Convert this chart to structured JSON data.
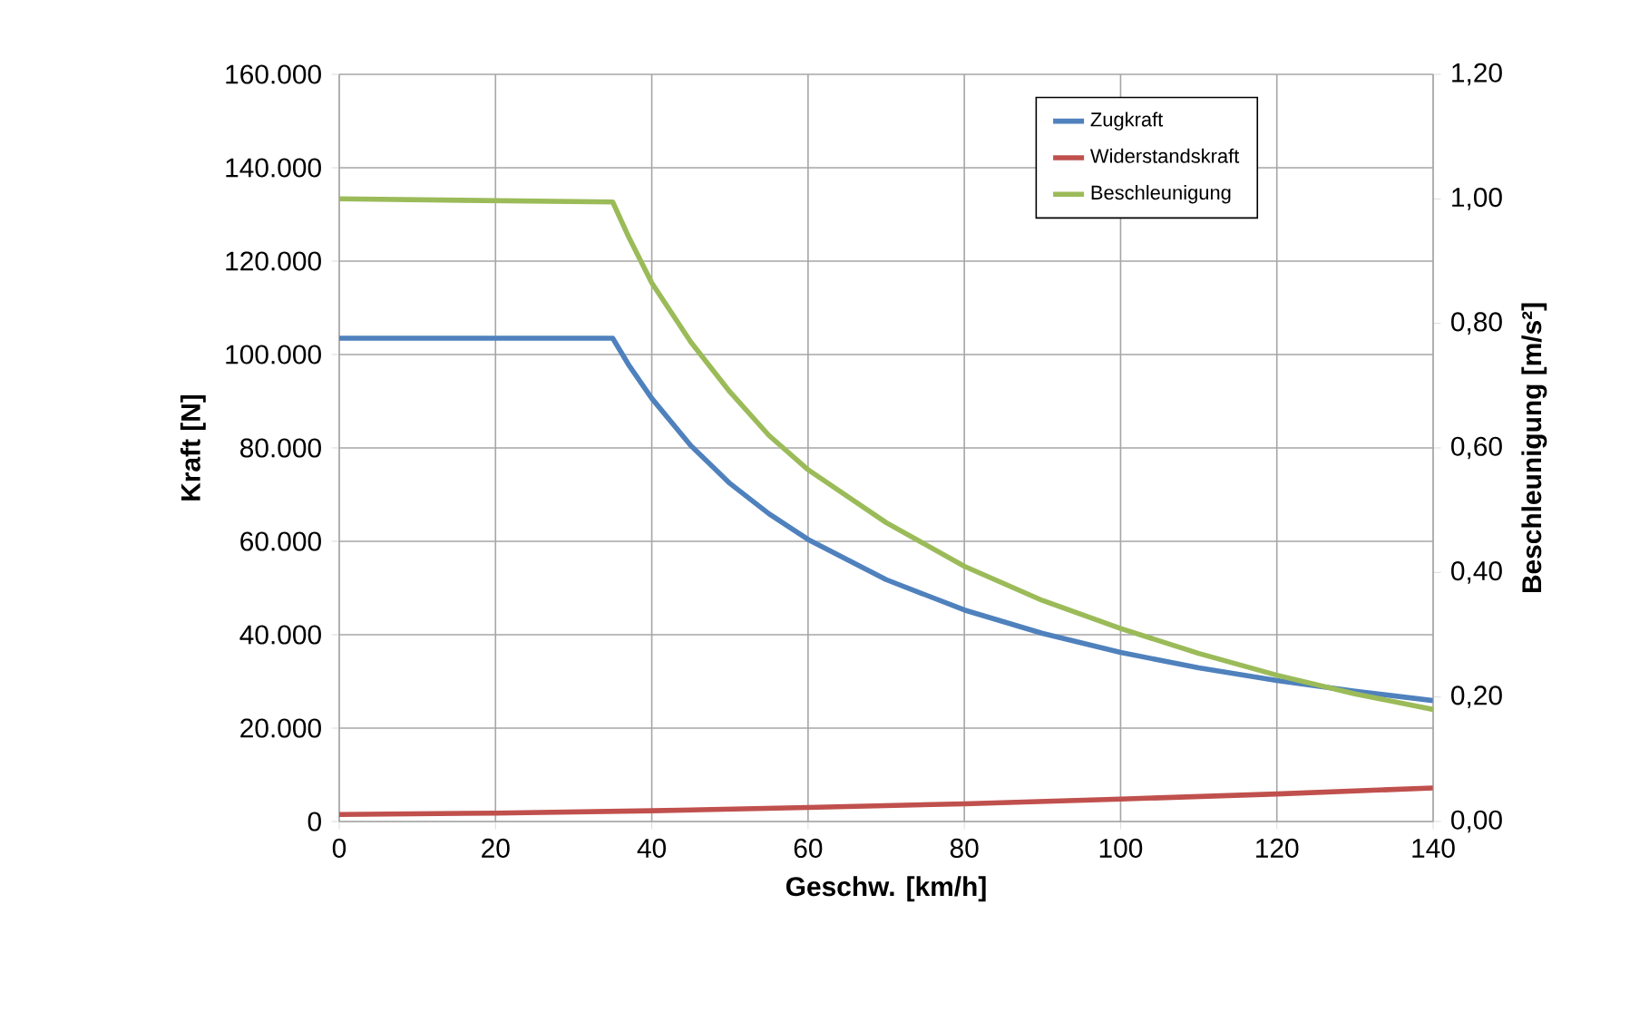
{
  "chart_data": {
    "type": "line",
    "xlabel": "Geschw. [km/h]",
    "ylabel": "Kraft [N]",
    "y2label": "Beschleunigung [m/s²]",
    "xlim": [
      0,
      140
    ],
    "xticks": [
      0,
      20,
      40,
      60,
      80,
      100,
      120,
      140
    ],
    "ylim": [
      0,
      160000
    ],
    "yticks": [
      {
        "value": 0,
        "label": "0"
      },
      {
        "value": 20000,
        "label": "20.000"
      },
      {
        "value": 40000,
        "label": "40.000"
      },
      {
        "value": 60000,
        "label": "60.000"
      },
      {
        "value": 80000,
        "label": "80.000"
      },
      {
        "value": 100000,
        "label": "100.000"
      },
      {
        "value": 120000,
        "label": "120.000"
      },
      {
        "value": 140000,
        "label": "140.000"
      },
      {
        "value": 160000,
        "label": "160.000"
      }
    ],
    "y2lim": [
      0,
      1.2
    ],
    "y2ticks": [
      {
        "value": 0,
        "label": "0,00"
      },
      {
        "value": 0.2,
        "label": "0,20"
      },
      {
        "value": 0.4,
        "label": "0,40"
      },
      {
        "value": 0.6,
        "label": "0,60"
      },
      {
        "value": 0.8,
        "label": "0,80"
      },
      {
        "value": 1.0,
        "label": "1,00"
      },
      {
        "value": 1.2,
        "label": "1,20"
      }
    ],
    "grid": true,
    "legend": "top right",
    "marker": "none",
    "line_style": "solid",
    "series": [
      {
        "name": "Zugkraft",
        "color": "#4f81bd",
        "x": [
          0,
          35,
          37,
          40,
          45,
          50,
          55,
          60,
          70,
          80,
          90,
          100,
          110,
          120,
          130,
          140
        ],
        "values": [
          103500,
          103500,
          97900,
          90600,
          80500,
          72400,
          65900,
          60400,
          51800,
          45300,
          40300,
          36200,
          32900,
          30200,
          27900,
          25900
        ]
      },
      {
        "name": "Widerstandskraft",
        "color": "#c0504d",
        "x": [
          0,
          20,
          40,
          60,
          80,
          100,
          120,
          140
        ],
        "values": [
          1500,
          1800,
          2300,
          3000,
          3800,
          4800,
          5900,
          7200
        ]
      },
      {
        "name": "Beschleunigung",
        "color": "#9bbb59",
        "axis": "y2",
        "x": [
          0,
          35,
          37,
          40,
          45,
          50,
          55,
          60,
          70,
          80,
          90,
          100,
          110,
          120,
          130,
          140
        ],
        "values": [
          1.0,
          0.995,
          0.94,
          0.865,
          0.77,
          0.69,
          0.62,
          0.565,
          0.48,
          0.41,
          0.355,
          0.31,
          0.27,
          0.235,
          0.205,
          0.18
        ]
      }
    ]
  }
}
